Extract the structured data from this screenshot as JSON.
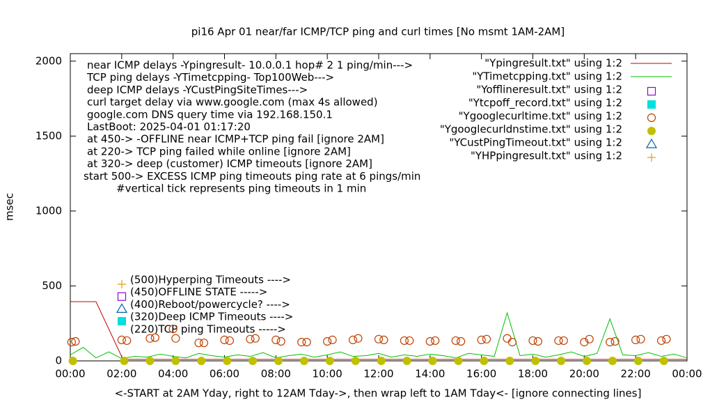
{
  "chart_data": {
    "type": "line",
    "title": "pi16 Apr 01  near/far ICMP/TCP ping and curl times [No msmt 1AM-2AM]",
    "x_label": "<-START at 2AM Yday, right to 12AM Tday->, then wrap left to 1AM Tday<- [ignore connecting lines]",
    "y_label": "msec",
    "xlim": [
      0,
      24
    ],
    "xticks": [
      {
        "value": 0,
        "label": "00:00"
      },
      {
        "value": 2,
        "label": "02:00"
      },
      {
        "value": 4,
        "label": "04:00"
      },
      {
        "value": 6,
        "label": "06:00"
      },
      {
        "value": 8,
        "label": "08:00"
      },
      {
        "value": 10,
        "label": "10:00"
      },
      {
        "value": 12,
        "label": "12:00"
      },
      {
        "value": 14,
        "label": "14:00"
      },
      {
        "value": 16,
        "label": "16:00"
      },
      {
        "value": 18,
        "label": "18:00"
      },
      {
        "value": 20,
        "label": "20:00"
      },
      {
        "value": 22,
        "label": "22:00"
      },
      {
        "value": 24,
        "label": "00:00"
      }
    ],
    "ylim": [
      0,
      2050
    ],
    "yticks": [
      0,
      500,
      1000,
      1500,
      2000
    ],
    "legend": "top-right",
    "notes": [
      "near ICMP delays -Ypingresult- 10.0.0.1 hop# 2 1 ping/min--->",
      "TCP ping delays -YTimetcpping- Top100Web--->",
      "deep ICMP delays -YCustPingSiteTimes--->",
      "curl target delay via www.google.com (max 4s allowed)",
      "google.com DNS query time via 192.168.150.1",
      "LastBoot: 2025-04-01 01:17:20",
      "at 450-> -OFFLINE near ICMP+TCP ping fail [ignore 2AM]",
      "at 220-> TCP ping failed while online [ignore 2AM]",
      "at 320-> deep (customer) ICMP timeouts [ignore 2AM]",
      "start 500-> EXCESS ICMP ping timeouts ping rate at 6 pings/min",
      "#vertical tick represents ping timeouts in 1 min"
    ],
    "key_notes": [
      {
        "text": "(500)Hyperping Timeouts ---->",
        "marker": "plus",
        "color": "#e6a000"
      },
      {
        "text": "(450)OFFLINE STATE ----->",
        "marker": "open-square",
        "color": "#9400d3"
      },
      {
        "text": "(400)Reboot/powercycle? ---->",
        "marker": "open-triangle",
        "color": "#0060ad"
      },
      {
        "text": "(320)Deep ICMP Timeouts ---->",
        "marker": "filled-square",
        "color": "#00e0e0"
      },
      {
        "text": "(220)TCP ping Timeouts ----->",
        "marker": "none",
        "color": "#000000"
      }
    ],
    "series": [
      {
        "name": "\"Ypingresult.txt\" using 1:2",
        "color": "#c00000",
        "marker": "line",
        "x": [
          0,
          1,
          2.05,
          24
        ],
        "values": [
          395,
          395,
          10,
          10
        ]
      },
      {
        "name": "\"YTimetcpping.txt\" using 1:2",
        "color": "#00c000",
        "marker": "line",
        "x": [
          0,
          0.5,
          1,
          1.5,
          2,
          2.5,
          3,
          3.5,
          4,
          4.5,
          5,
          5.5,
          6,
          6.5,
          7,
          7.5,
          8,
          8.5,
          9,
          9.5,
          10,
          10.5,
          11,
          11.5,
          12,
          12.5,
          13,
          13.5,
          14,
          14.5,
          15,
          15.5,
          16,
          16.5,
          17,
          17.5,
          18,
          18.5,
          19,
          19.5,
          20,
          20.5,
          21,
          21.5,
          22,
          22.5,
          23,
          23.5,
          24
        ],
        "values": [
          40,
          90,
          20,
          60,
          15,
          30,
          25,
          45,
          30,
          20,
          50,
          35,
          25,
          40,
          30,
          55,
          20,
          35,
          45,
          25,
          40,
          60,
          30,
          35,
          50,
          25,
          40,
          30,
          45,
          35,
          20,
          50,
          40,
          30,
          320,
          35,
          45,
          25,
          40,
          60,
          30,
          50,
          280,
          40,
          35,
          55,
          30,
          45,
          20
        ]
      },
      {
        "name": "\"Yofflineresult.txt\" using 1:2",
        "color": "#9400d3",
        "marker": "open-square",
        "x": [],
        "values": []
      },
      {
        "name": "\"Ytcpoff_record.txt\" using 1:2",
        "color": "#00e0e0",
        "marker": "filled-square",
        "x": [],
        "values": []
      },
      {
        "name": "\"Ygooglecurltime.txt\" using 1:2",
        "color": "#c04000",
        "marker": "open-circle",
        "x": [
          0.05,
          0.2,
          2.0,
          2.2,
          3.1,
          3.3,
          4.0,
          4.1,
          5.0,
          5.2,
          6.0,
          6.2,
          7.0,
          7.2,
          8.0,
          8.2,
          9.0,
          9.2,
          10.0,
          10.2,
          11.0,
          11.2,
          12.0,
          12.2,
          13.0,
          13.2,
          14.0,
          14.2,
          15.0,
          15.2,
          16.0,
          16.2,
          17.0,
          17.2,
          18.0,
          18.2,
          19.0,
          19.2,
          20.0,
          20.2,
          21.0,
          21.2,
          22.0,
          22.2,
          23.0,
          23.2
        ],
        "values": [
          125,
          130,
          140,
          135,
          150,
          155,
          213,
          150,
          120,
          120,
          140,
          135,
          145,
          150,
          140,
          130,
          125,
          125,
          130,
          140,
          140,
          150,
          145,
          140,
          135,
          135,
          130,
          135,
          135,
          130,
          140,
          145,
          150,
          125,
          135,
          130,
          135,
          135,
          125,
          145,
          125,
          130,
          140,
          145,
          135,
          145
        ]
      },
      {
        "name": "\"Ygooglecurldnstime.txt\" using 1:2",
        "color": "#c0c000",
        "marker": "filled-circle",
        "x": [
          0.1,
          2.1,
          3.1,
          4.1,
          5.1,
          6.1,
          7.1,
          8.1,
          9.1,
          10.1,
          11.1,
          12.1,
          13.1,
          14.1,
          15.1,
          16.1,
          17.1,
          18.1,
          19.1,
          20.1,
          21.1,
          22.1,
          23.1
        ],
        "values": [
          0,
          0,
          0,
          0,
          0,
          0,
          0,
          0,
          0,
          0,
          0,
          0,
          0,
          0,
          0,
          0,
          0,
          0,
          0,
          0,
          0,
          0,
          0
        ]
      },
      {
        "name": "\"YCustPingTimeout.txt\" using 1:2",
        "color": "#0060ad",
        "marker": "open-triangle",
        "x": [],
        "values": []
      },
      {
        "name": "\"YHPpingresult.txt\" using 1:2",
        "color": "#e6a000",
        "marker": "plus",
        "x": [],
        "values": []
      }
    ]
  }
}
